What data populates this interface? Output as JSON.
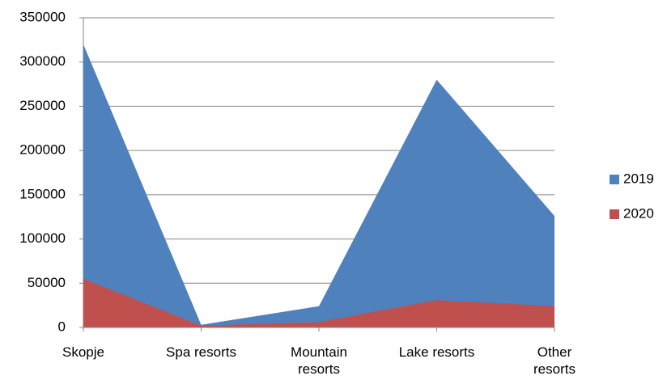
{
  "chart_data": {
    "type": "area",
    "categories": [
      "Skopje",
      "Spa resorts",
      "Mountain resorts",
      "Lake resorts",
      "Other resorts"
    ],
    "series": [
      {
        "name": "2019",
        "color": "#4f81bd",
        "values": [
          320000,
          3000,
          24000,
          280000,
          126000
        ]
      },
      {
        "name": "2020",
        "color": "#c0504d",
        "values": [
          55000,
          2000,
          6000,
          31000,
          24000
        ]
      }
    ],
    "ylim": [
      0,
      350000
    ],
    "yticks": [
      0,
      50000,
      100000,
      150000,
      200000,
      250000,
      300000,
      350000
    ],
    "grid": true,
    "legend": "right"
  }
}
